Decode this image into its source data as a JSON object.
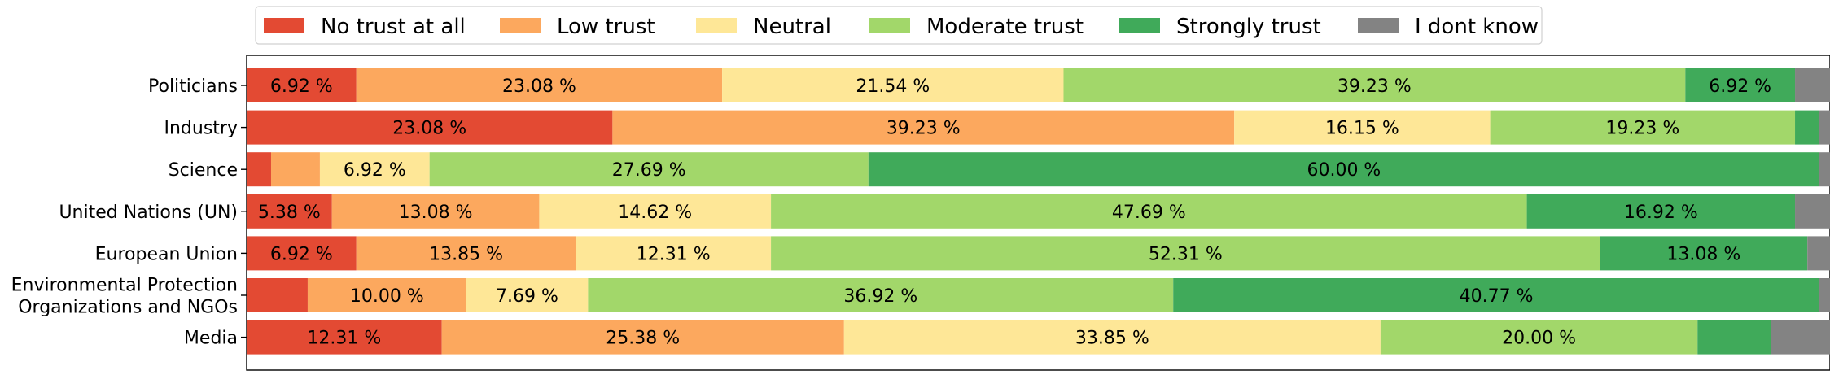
{
  "chart_data": {
    "type": "bar",
    "orientation": "horizontal",
    "stacked": true,
    "normalized": true,
    "categories": [
      "Politicians",
      "Industry",
      "Science",
      "United Nations (UN)",
      "European Union",
      "Environmental Protection\nOrganizations and NGOs",
      "Media"
    ],
    "series": [
      {
        "name": "No trust at all",
        "color": "#e34a33",
        "values": [
          6.92,
          23.08,
          1.54,
          5.38,
          6.92,
          3.85,
          12.31
        ]
      },
      {
        "name": "Low trust",
        "color": "#fca85e",
        "values": [
          23.08,
          39.23,
          3.08,
          13.08,
          13.85,
          10.0,
          25.38
        ]
      },
      {
        "name": "Neutral",
        "color": "#fee797",
        "values": [
          21.54,
          16.15,
          6.92,
          14.62,
          12.31,
          7.69,
          33.85
        ]
      },
      {
        "name": "Moderate trust",
        "color": "#a2d76a",
        "values": [
          39.23,
          19.23,
          27.69,
          47.69,
          52.31,
          36.92,
          20.0
        ]
      },
      {
        "name": "Strongly trust",
        "color": "#40aa5a",
        "values": [
          6.92,
          1.54,
          60.0,
          16.92,
          13.08,
          40.77,
          4.62
        ]
      },
      {
        "name": "I dont know",
        "color": "#838383",
        "values": [
          2.31,
          0.77,
          0.77,
          2.31,
          1.54,
          0.77,
          3.85
        ]
      }
    ],
    "label_min_value": 5,
    "label_format": "{v} %",
    "xlim": [
      0,
      100
    ],
    "legend_position": "top",
    "grid": false
  }
}
